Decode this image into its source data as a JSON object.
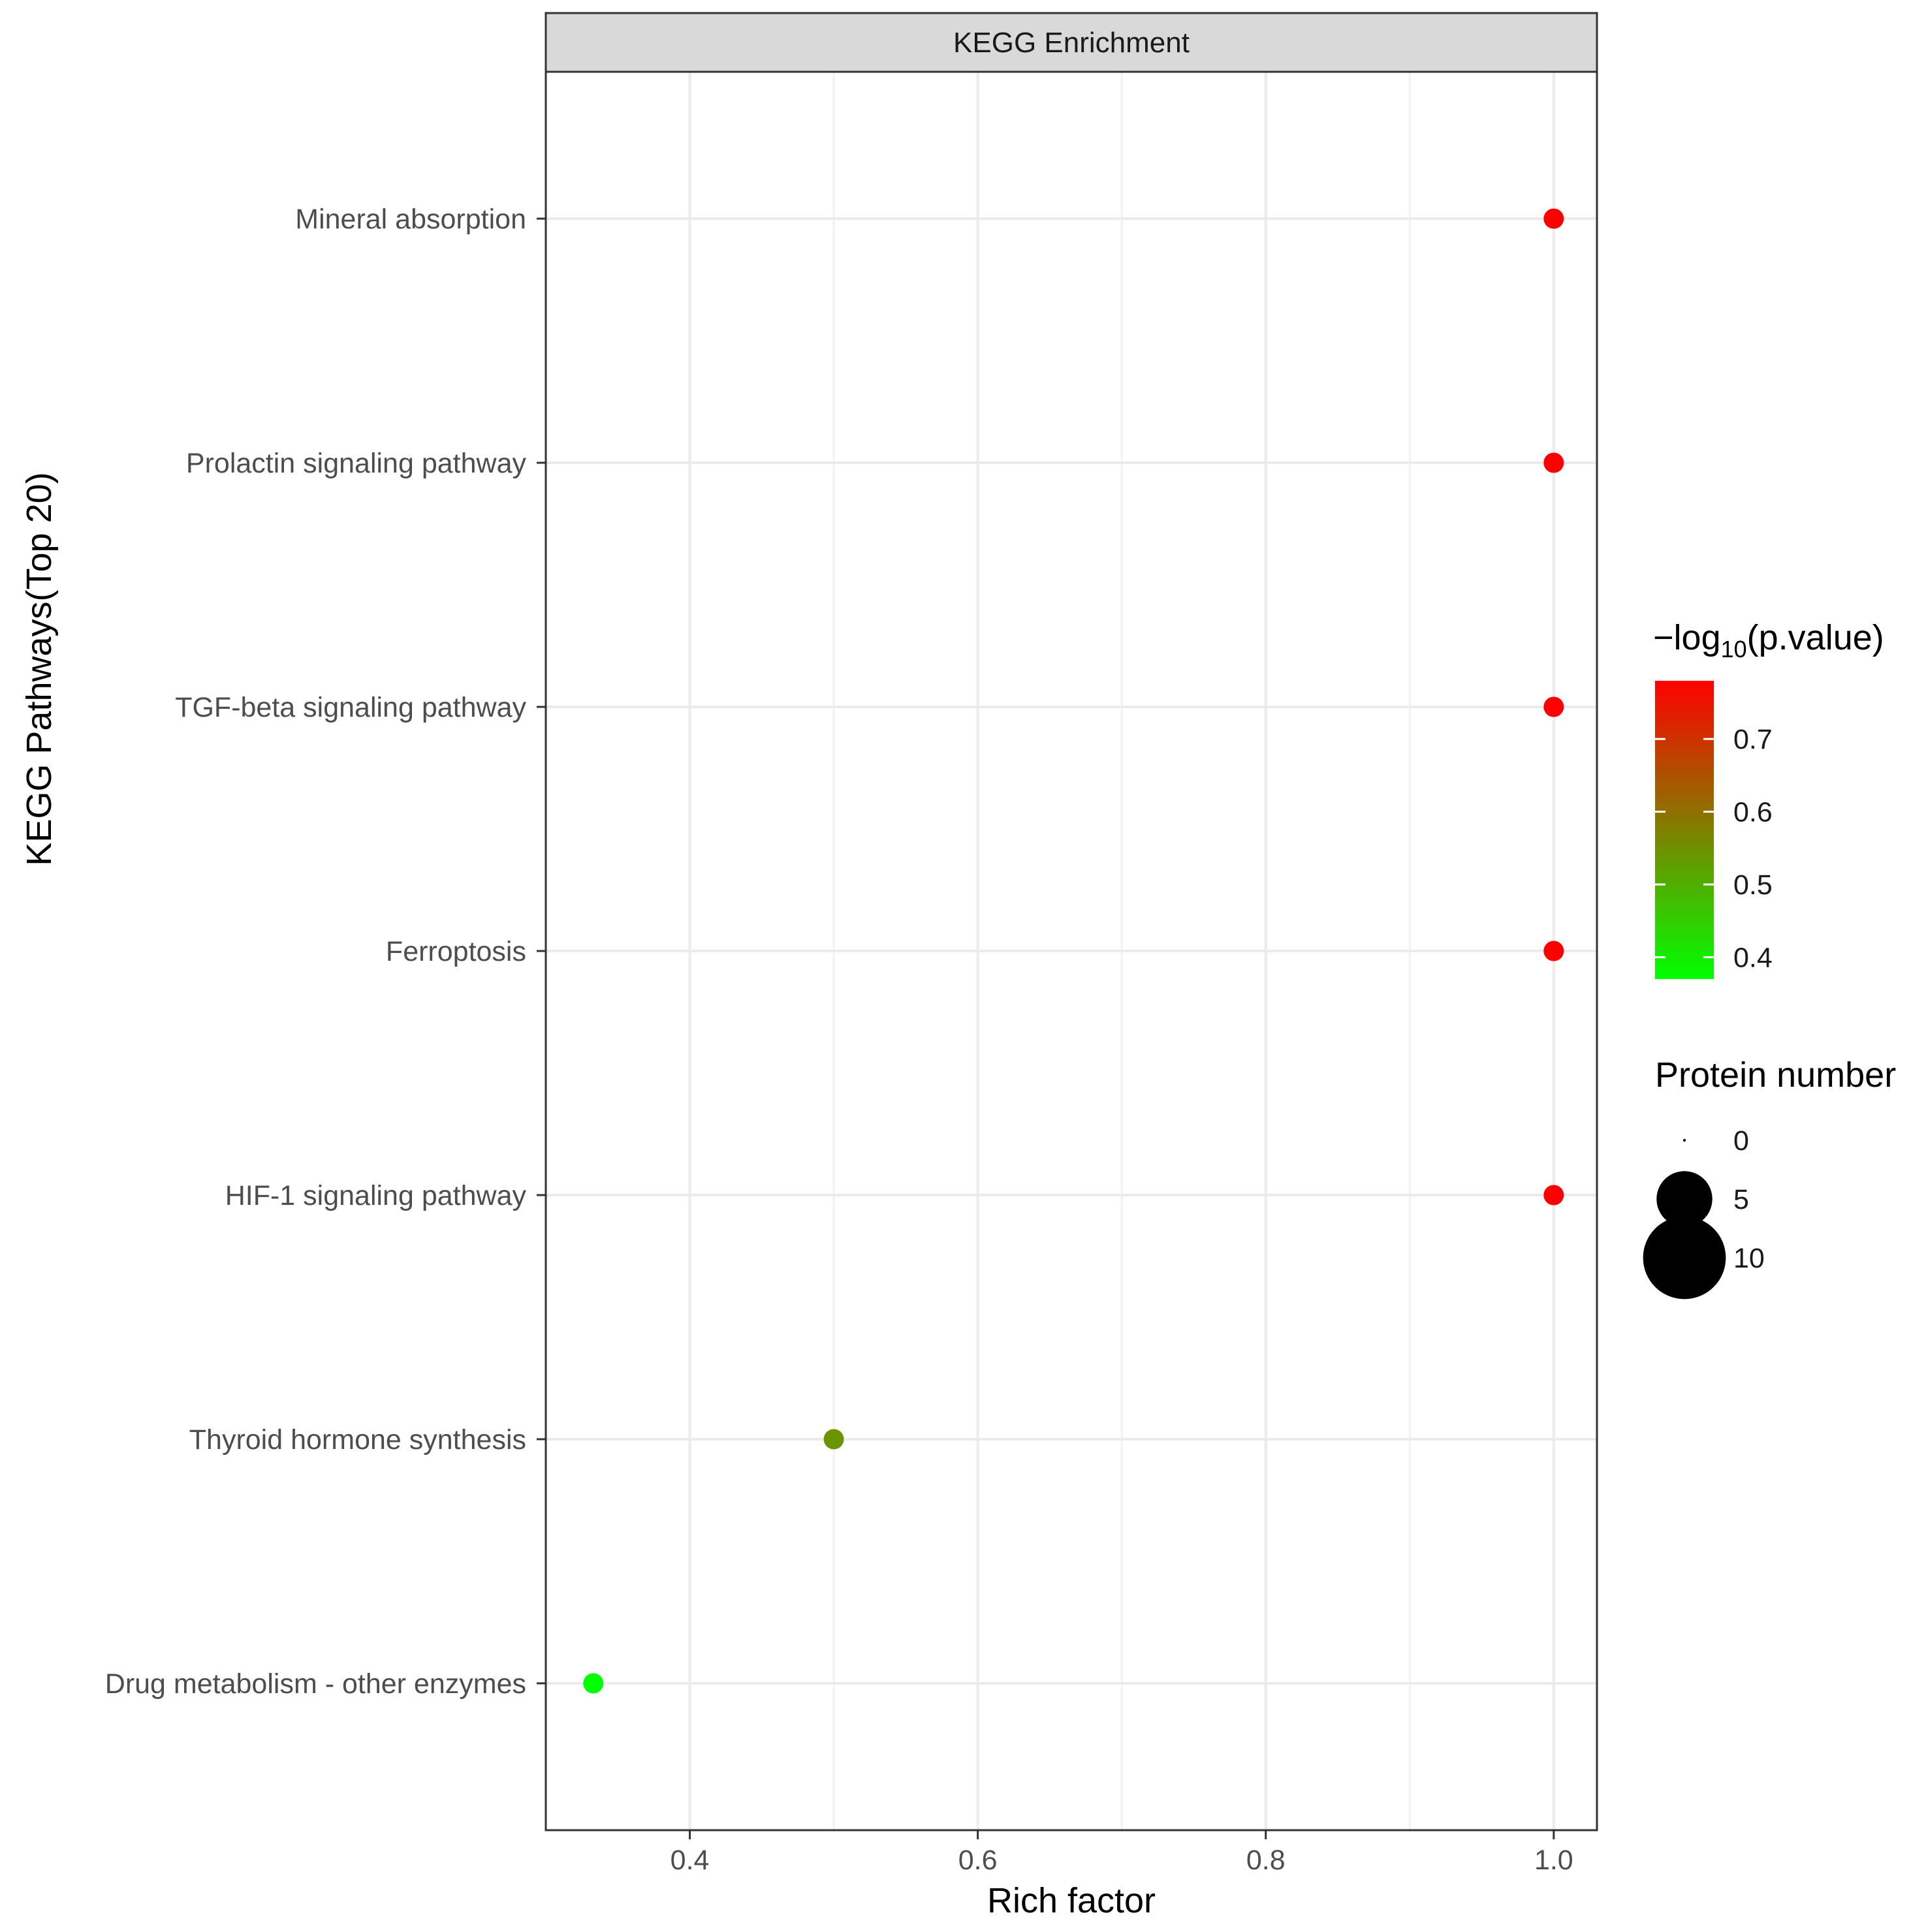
{
  "chart_data": {
    "type": "scatter",
    "facet_title": "KEGG Enrichment",
    "xlabel": "Rich factor",
    "ylabel": "KEGG Pathways(Top 20)",
    "xlim": [
      0.3,
      1.03
    ],
    "xticks": [
      0.4,
      0.6,
      0.8,
      1.0
    ],
    "xtick_labels": [
      "0.4",
      "0.6",
      "0.8",
      "1.0"
    ],
    "grid": true,
    "categories": [
      "Mineral absorption",
      "Prolactin signaling pathway",
      "TGF-beta signaling pathway",
      "Ferroptosis",
      "HIF-1 signaling pathway",
      "Thyroid hormone synthesis",
      "Drug metabolism - other enzymes"
    ],
    "rich_factor": [
      1.0,
      1.0,
      1.0,
      1.0,
      1.0,
      0.5,
      0.333
    ],
    "neg_log10_pvalue": [
      0.78,
      0.78,
      0.78,
      0.78,
      0.78,
      0.54,
      0.37
    ],
    "protein_number": [
      1,
      1,
      1,
      1,
      1,
      1,
      1
    ],
    "color_legend": {
      "title_prefix": "−log",
      "title_subscript": "10",
      "title_suffix": "(p.value)",
      "range": [
        0.37,
        0.78
      ],
      "ticks": [
        0.4,
        0.5,
        0.6,
        0.7
      ],
      "tick_labels": [
        "0.4",
        "0.5",
        "0.6",
        "0.7"
      ],
      "low_color": "#00ff00",
      "high_color": "#ff0000"
    },
    "size_legend": {
      "title": "Protein number",
      "values": [
        0,
        5,
        10
      ],
      "labels": [
        "0",
        "5",
        "10"
      ]
    },
    "legend_position": "right"
  }
}
